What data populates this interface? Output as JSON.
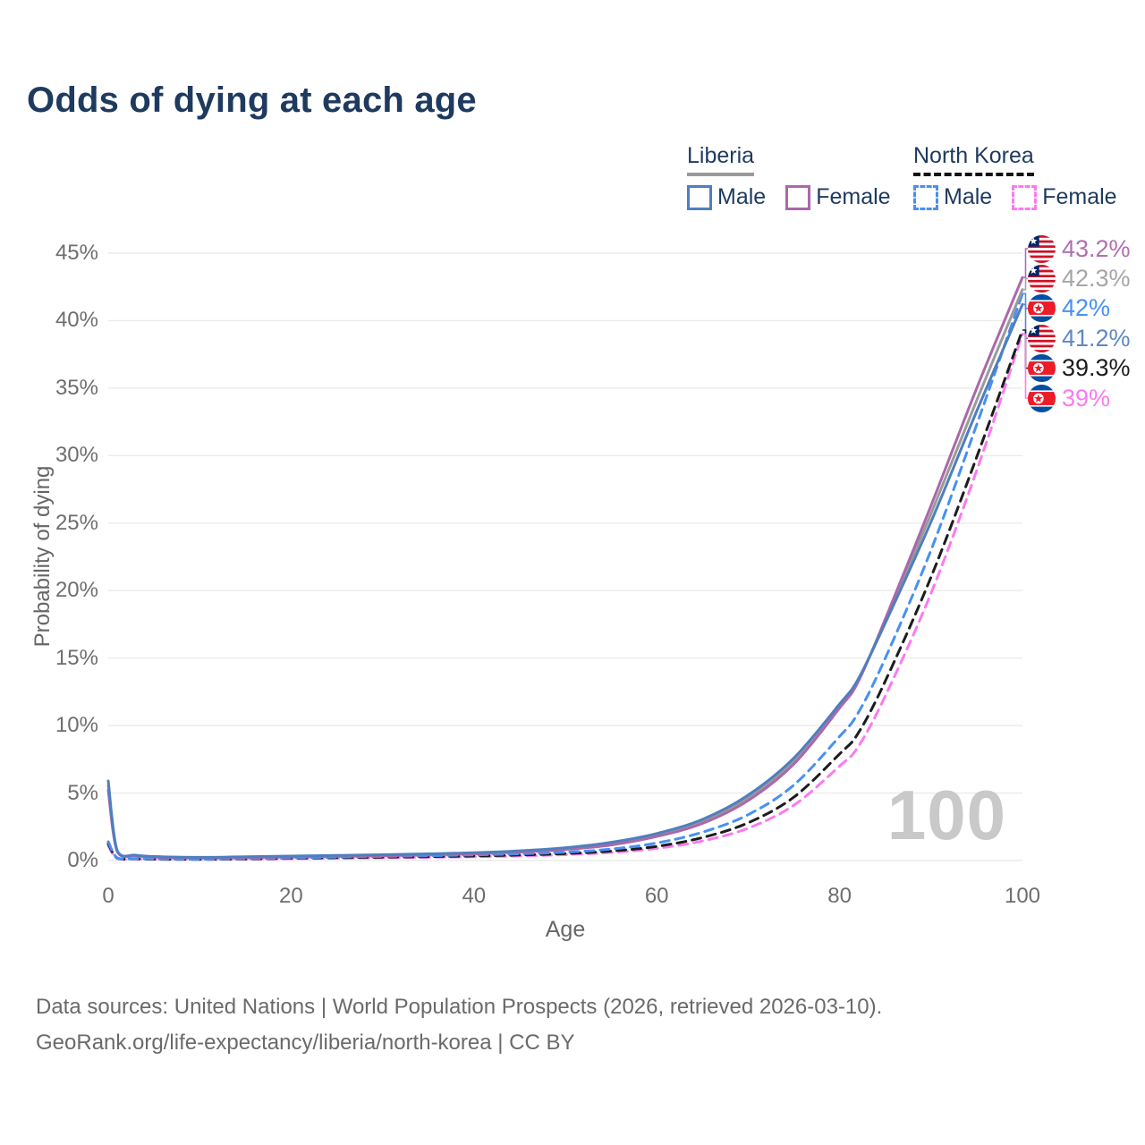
{
  "title": "Odds of dying at each age",
  "legend": {
    "groups": [
      {
        "name": "Liberia",
        "underline": "solid",
        "underline_color": "#9a9a9a",
        "items": [
          {
            "label": "Male",
            "color": "#4e7fbe",
            "dashed": false
          },
          {
            "label": "Female",
            "color": "#aa68ab",
            "dashed": false
          }
        ]
      },
      {
        "name": "North Korea",
        "underline": "dashed",
        "underline_color": "#111111",
        "items": [
          {
            "label": "Male",
            "color": "#4790f4",
            "dashed": true
          },
          {
            "label": "Female",
            "color": "#fb7af0",
            "dashed": true
          }
        ]
      }
    ]
  },
  "axes": {
    "y": {
      "label": "Probability of dying",
      "ticks": [
        "45%",
        "40%",
        "35%",
        "30%",
        "25%",
        "20%",
        "15%",
        "10%",
        "5%",
        "0%"
      ],
      "min": 0,
      "max": 45
    },
    "x": {
      "label": "Age",
      "ticks": [
        "0",
        "20",
        "40",
        "60",
        "80",
        "100"
      ],
      "tick_values": [
        0,
        20,
        40,
        60,
        80,
        100
      ],
      "min": 0,
      "max": 100
    }
  },
  "hover": {
    "age_indicator": "100"
  },
  "end_labels": [
    {
      "value": "43.2%",
      "color": "#b06fb1",
      "flag": "liberia",
      "series": "Liberia Female"
    },
    {
      "value": "42.3%",
      "color": "#a6a6a6",
      "flag": "liberia",
      "series": "Liberia"
    },
    {
      "value": "42%",
      "color": "#4790f4",
      "flag": "north-korea",
      "series": "North Korea Male"
    },
    {
      "value": "41.2%",
      "color": "#5f88c6",
      "flag": "liberia",
      "series": "Liberia Male"
    },
    {
      "value": "39.3%",
      "color": "#1c1c1c",
      "flag": "north-korea",
      "series": "North Korea"
    },
    {
      "value": "39%",
      "color": "#fb7af0",
      "flag": "north-korea",
      "series": "North Korea Female"
    }
  ],
  "footer": {
    "line1": "Data sources: United Nations | World Population Prospects (2026, retrieved 2026-03-10).",
    "line2": "GeoRank.org/life-expectancy/liberia/north-korea | CC BY"
  },
  "chart_data": {
    "type": "line",
    "title": "Odds of dying at each age",
    "xlabel": "Age",
    "ylabel": "Probability of dying",
    "xlim": [
      0,
      100
    ],
    "ylim": [
      0,
      45
    ],
    "grid": "horizontal",
    "legend_position": "top-right",
    "x": [
      0,
      1,
      3,
      5,
      10,
      15,
      20,
      25,
      30,
      35,
      40,
      45,
      50,
      55,
      60,
      65,
      70,
      75,
      80,
      82,
      85,
      90,
      95,
      100
    ],
    "series": [
      {
        "name": "Liberia Male",
        "country": "Liberia",
        "sex": "male",
        "color": "#4e7fbe",
        "dashed": false,
        "values": [
          5.9,
          0.7,
          0.4,
          0.3,
          0.24,
          0.28,
          0.33,
          0.38,
          0.43,
          0.5,
          0.58,
          0.72,
          0.95,
          1.35,
          2.0,
          3.05,
          4.85,
          7.6,
          11.6,
          13.4,
          17.6,
          25.1,
          33.3,
          41.2
        ],
        "end_value_pct": 41.2
      },
      {
        "name": "Liberia Female",
        "country": "Liberia",
        "sex": "female",
        "color": "#aa68ab",
        "dashed": false,
        "values": [
          5.2,
          0.65,
          0.35,
          0.26,
          0.2,
          0.23,
          0.27,
          0.31,
          0.36,
          0.42,
          0.5,
          0.62,
          0.82,
          1.15,
          1.78,
          2.75,
          4.45,
          7.15,
          11.3,
          13.2,
          17.9,
          26.3,
          35.0,
          43.2
        ],
        "end_value_pct": 43.2
      },
      {
        "name": "Liberia",
        "country": "Liberia",
        "sex": "both",
        "color": "#9a9a9a",
        "dashed": false,
        "values": [
          5.55,
          0.68,
          0.37,
          0.28,
          0.22,
          0.26,
          0.3,
          0.35,
          0.4,
          0.46,
          0.54,
          0.67,
          0.89,
          1.25,
          1.9,
          2.9,
          4.65,
          7.4,
          11.45,
          13.3,
          17.75,
          25.7,
          34.1,
          42.3
        ],
        "end_value_pct": 42.3
      },
      {
        "name": "North Korea Male",
        "country": "North Korea",
        "sex": "male",
        "color": "#4790f4",
        "dashed": true,
        "values": [
          1.4,
          0.2,
          0.15,
          0.12,
          0.1,
          0.14,
          0.2,
          0.26,
          0.31,
          0.36,
          0.42,
          0.5,
          0.62,
          0.85,
          1.3,
          2.1,
          3.4,
          5.6,
          9.2,
          10.9,
          15.0,
          23.0,
          32.3,
          42.0
        ],
        "end_value_pct": 42.0
      },
      {
        "name": "North Korea",
        "country": "North Korea",
        "sex": "both",
        "color": "#1c1c1c",
        "dashed": true,
        "values": [
          1.25,
          0.18,
          0.13,
          0.1,
          0.09,
          0.12,
          0.17,
          0.21,
          0.25,
          0.29,
          0.34,
          0.41,
          0.52,
          0.7,
          1.05,
          1.7,
          2.8,
          4.7,
          7.9,
          9.4,
          13.3,
          21.0,
          29.9,
          39.3
        ],
        "end_value_pct": 39.3
      },
      {
        "name": "North Korea Female",
        "country": "North Korea",
        "sex": "female",
        "color": "#fb7af0",
        "dashed": true,
        "values": [
          1.1,
          0.16,
          0.11,
          0.09,
          0.08,
          0.1,
          0.14,
          0.17,
          0.2,
          0.24,
          0.28,
          0.34,
          0.44,
          0.6,
          0.9,
          1.45,
          2.4,
          4.1,
          7.0,
          8.4,
          12.2,
          19.8,
          28.9,
          39.0
        ],
        "end_value_pct": 39.0
      }
    ]
  }
}
